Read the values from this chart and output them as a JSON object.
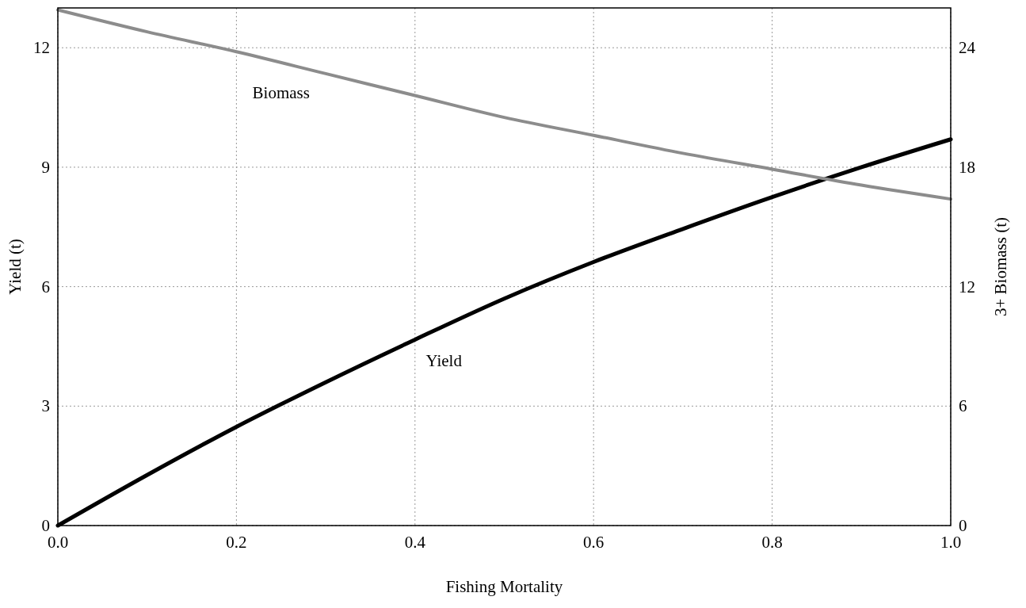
{
  "chart_data": {
    "type": "line",
    "xlabel": "Fishing Mortality",
    "ylabel": "Yield (t)",
    "y2label": "3+ Biomass (t)",
    "x": [
      0,
      0.1,
      0.2,
      0.3,
      0.4,
      0.5,
      0.6,
      0.7,
      0.8,
      0.9,
      1.0
    ],
    "series": [
      {
        "name": "Yield",
        "color": "#000000",
        "values": [
          0,
          1.27,
          2.48,
          3.6,
          4.67,
          5.7,
          6.62,
          7.45,
          8.25,
          9.0,
          9.7
        ]
      },
      {
        "name": "Biomass",
        "color": "#8c8c8c",
        "axis": "y2",
        "values": [
          25.9,
          24.8,
          23.8,
          22.7,
          21.6,
          20.5,
          19.6,
          18.7,
          17.9,
          17.1,
          16.4
        ]
      }
    ],
    "xlim": [
      0,
      1
    ],
    "xticks": [
      {
        "value": 0,
        "label": "0.0"
      },
      {
        "value": 0.2,
        "label": "0.2"
      },
      {
        "value": 0.4,
        "label": "0.4"
      },
      {
        "value": 0.6,
        "label": "0.6"
      },
      {
        "value": 0.8,
        "label": "0.8"
      },
      {
        "value": 1,
        "label": "1.0"
      }
    ],
    "ylim": [
      0,
      13
    ],
    "yticks": [
      0,
      3,
      6,
      9,
      12
    ],
    "y2lim": [
      0,
      26
    ],
    "y2ticks": [
      0,
      6,
      12,
      18,
      24
    ],
    "grid": true,
    "marker": "none",
    "line_style": "solid"
  }
}
